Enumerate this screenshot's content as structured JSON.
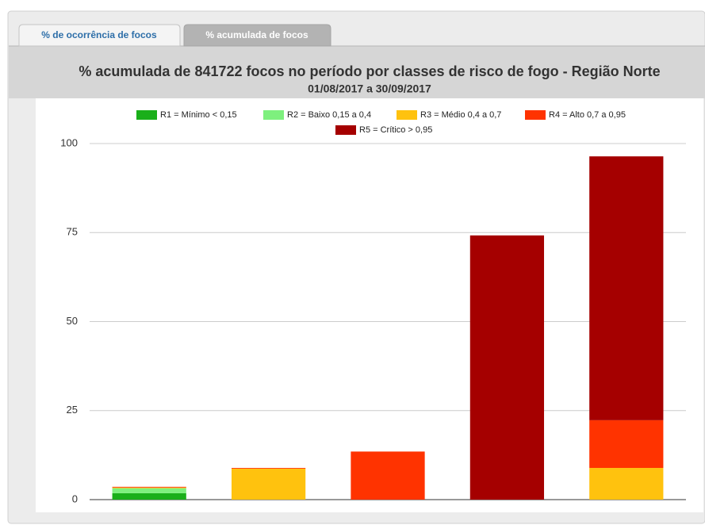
{
  "tabs": [
    "% de ocorrência de focos",
    "% acumulada de focos"
  ],
  "chart_data": {
    "type": "bar",
    "stacked": true,
    "title": "% acumulada de 841722 focos no período por classes de risco de fogo - Região Norte",
    "subtitle": "01/08/2017 a 30/09/2017",
    "categories": [
      null,
      null,
      null,
      null,
      null
    ],
    "series": [
      {
        "name": "R1 = Mínimo < 0,15",
        "color": "#1aaf1a",
        "values": [
          1.8,
          0,
          0,
          0,
          0
        ]
      },
      {
        "name": "R2 = Baixo 0,15 a 0,4",
        "color": "#7ef07e",
        "values": [
          1.4,
          0,
          0,
          0,
          0
        ]
      },
      {
        "name": "R3 = Médio 0,4 a 0,7",
        "color": "#ffc20e",
        "values": [
          0.2,
          8.7,
          0,
          0,
          8.9
        ]
      },
      {
        "name": "R4 = Alto 0,7 a 0,95",
        "color": "#ff3300",
        "values": [
          0.2,
          0.2,
          13.5,
          0,
          13.4
        ]
      },
      {
        "name": "R5 = Crítico > 0,95",
        "color": "#a50000",
        "values": [
          0,
          0,
          0,
          74.2,
          74.1
        ]
      }
    ],
    "ylim": [
      0,
      100
    ],
    "yticks": [
      0,
      25,
      50,
      75,
      100
    ],
    "grid": true,
    "legend": "top"
  }
}
